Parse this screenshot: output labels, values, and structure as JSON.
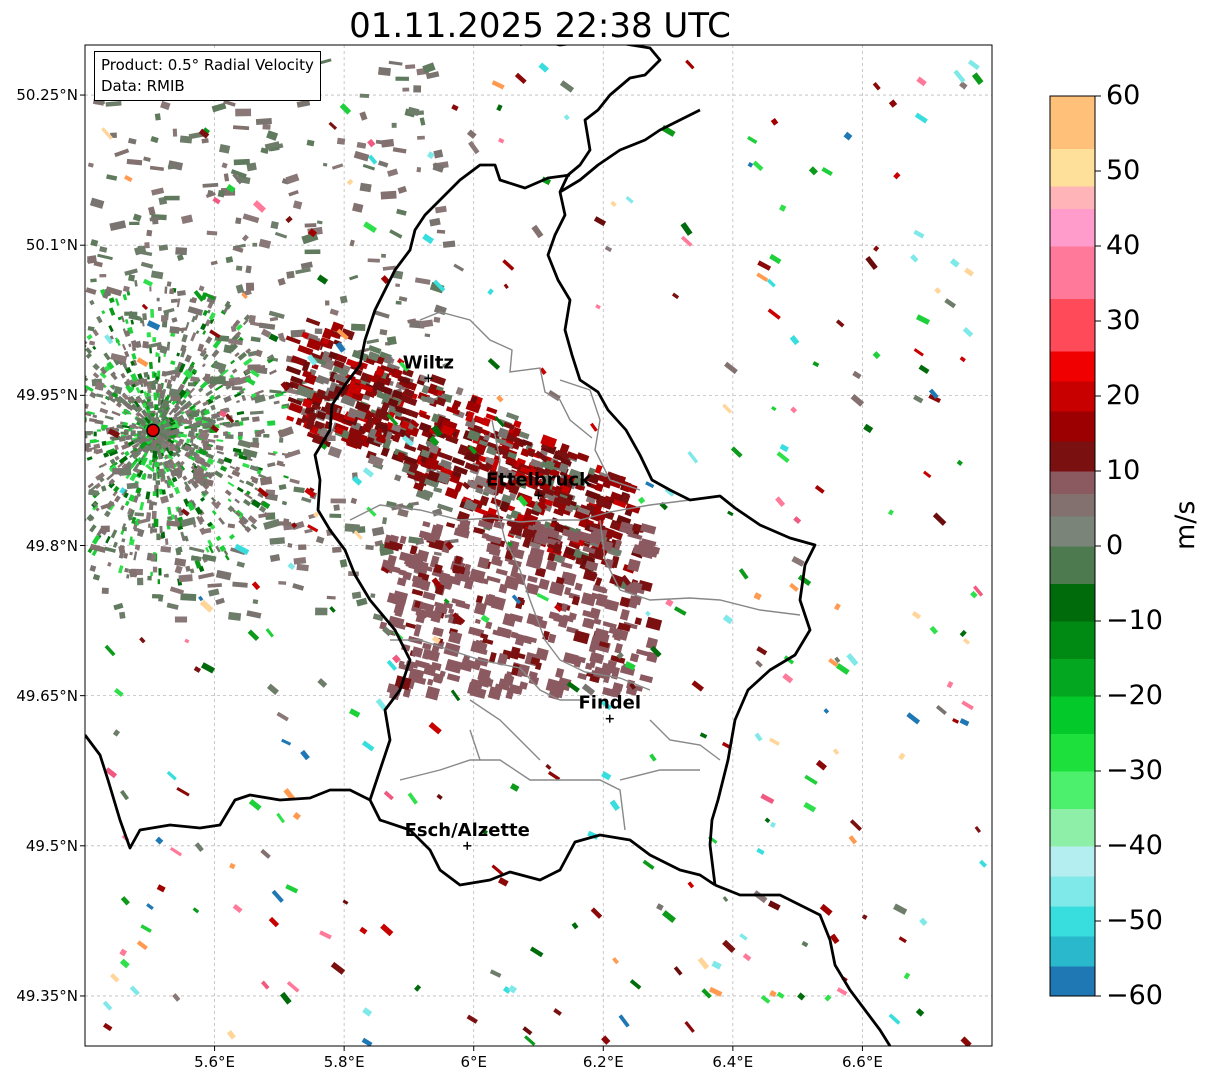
{
  "title": "01.11.2025 22:38 UTC",
  "info": {
    "product": "Product: 0.5° Radial Velocity",
    "source": "Data: RMIB"
  },
  "lat_labels": [
    "50.25°N",
    "50.1°N",
    "49.95°N",
    "49.8°N",
    "49.65°N",
    "49.5°N",
    "49.35°N"
  ],
  "lon_labels": [
    "5.6°E",
    "5.8°E",
    "6°E",
    "6.2°E",
    "6.4°E",
    "6.6°E"
  ],
  "lat_values": [
    50.25,
    50.1,
    49.95,
    49.8,
    49.65,
    49.5,
    49.35
  ],
  "lon_values": [
    5.6,
    5.8,
    6.0,
    6.2,
    6.4,
    6.6
  ],
  "extent": {
    "lon": [
      5.4,
      6.8
    ],
    "lat": [
      49.3,
      50.3
    ]
  },
  "places": [
    {
      "name": "Wiltz",
      "lon": 5.93,
      "lat": 49.967
    },
    {
      "name": "Ettelbruck",
      "lon": 6.1,
      "lat": 49.85
    },
    {
      "name": "Findel",
      "lon": 6.21,
      "lat": 49.627
    },
    {
      "name": "Esch/Alzette",
      "lon": 5.99,
      "lat": 49.5
    }
  ],
  "radar_site": {
    "lon": 5.505,
    "lat": 49.915
  },
  "colorbar": {
    "unit": "m/s",
    "ticks": [
      "60",
      "50",
      "40",
      "30",
      "20",
      "10",
      "0",
      "−10",
      "−20",
      "−30",
      "−40",
      "−50",
      "−60"
    ],
    "tick_values": [
      60,
      50,
      40,
      30,
      20,
      10,
      0,
      -10,
      -20,
      -30,
      -40,
      -50,
      -60
    ],
    "range": [
      -60,
      60
    ],
    "colors": [
      "#1f78b4",
      "#29b8cc",
      "#38dede",
      "#7fe8e8",
      "#b5eef0",
      "#8ef0a8",
      "#4cf06c",
      "#1ee03c",
      "#04c92a",
      "#03a820",
      "#008a14",
      "#006b0b",
      "#4e7a50",
      "#7a8478",
      "#82716f",
      "#8a5a60",
      "#7a1010",
      "#9c0000",
      "#c80000",
      "#f00000",
      "#ff4a5a",
      "#ff7a9a",
      "#ff9ccc",
      "#ffb4b8",
      "#ffe09a",
      "#ffc07a",
      "#ff9a50"
    ],
    "color_stops": [
      -60,
      -56,
      -52,
      -48,
      -44,
      -40,
      -35,
      -30,
      -25,
      -20,
      -15,
      -10,
      -5,
      0,
      4,
      7,
      10,
      14,
      18,
      22,
      26,
      33,
      40,
      45,
      48,
      53,
      60
    ]
  }
}
